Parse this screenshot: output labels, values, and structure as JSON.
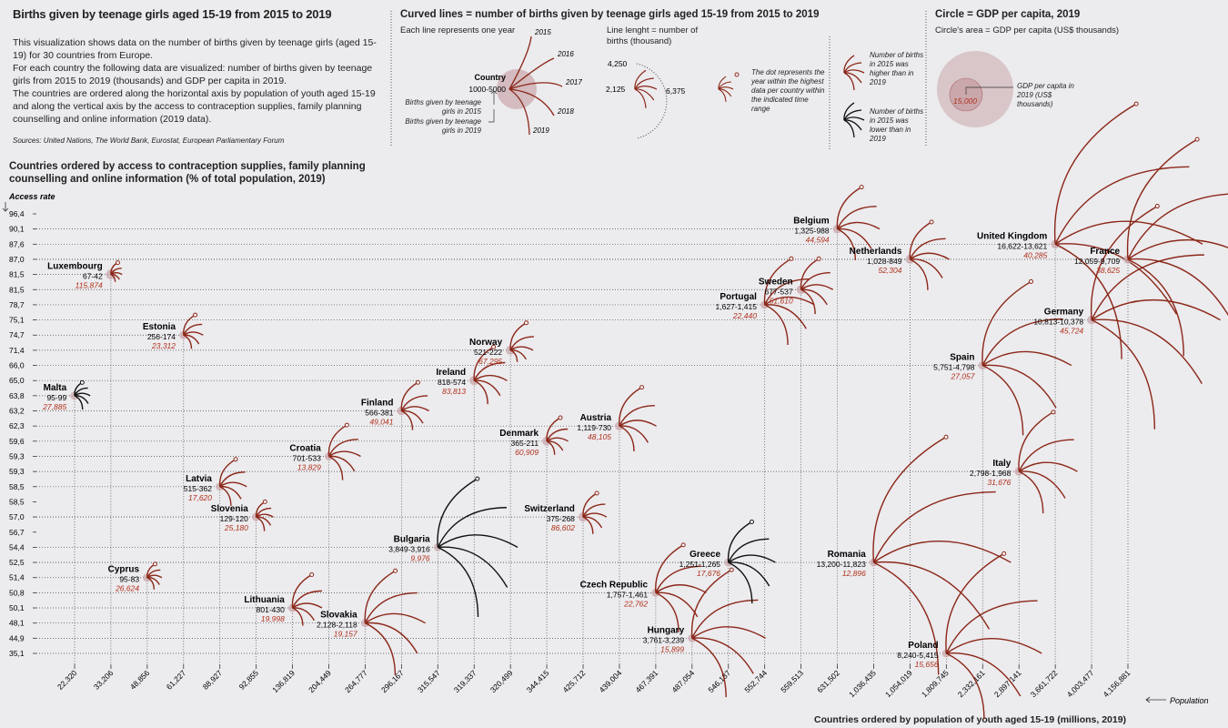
{
  "title": "Births given by teenage girls aged 15-19 from 2015 to 2019",
  "description": [
    "This  visualization shows data on the number of births given by teenage girls (aged 15-19) for 30 countries from Europe.",
    "For each country the following data are visualized: number of births given by teenage girls from 2015 to 2019 (thousands) and GDP per capita in 2019.",
    "The countries are ordered along the horizontal axis by population of youth aged 15-19 and along the vertical axis by the access to contraception supplies, family planning counselling and online information (2019 data)."
  ],
  "sources": "Sources: United Nations, The World Bank, Eurostat, European Parliamentary Forum",
  "y_axis_title": "Countries ordered by access to contraception supplies, family planning counselling and online information (% of total population, 2019)",
  "y_axis_label": "Access rate",
  "x_axis_title": "Countries ordered by population of youth aged 15-19 (millions, 2019)",
  "x_axis_label": "Population",
  "legend": {
    "curves_title": "Curved lines = number of births given by teenage girls aged 15-19 from 2015 to 2019",
    "each_line": "Each line represents one year",
    "years": [
      "2015",
      "2016",
      "2017",
      "2018",
      "2019"
    ],
    "country_label": "Country",
    "country_range": "1000-5000",
    "births_2015": "Births given by teenage girls in 2015",
    "births_2019": "Births given by teenage girls in 2019",
    "line_length": "Line lenght = number of births (thousand)",
    "scale_values": [
      "4,250",
      "2,125",
      "6,375"
    ],
    "dot_note": "The dot represents the year within the highest data per country within the indicated time range",
    "higher_note": "Number of births in 2015 was higher than in 2019",
    "lower_note": "Number of births in 2015 was lower than in 2019",
    "circle_title": "Circle = GDP per capita, 2019",
    "circle_area": "Circle's area = GDP per capita (US$ thousands)",
    "circle_example": "15,000",
    "circle_note": "GDP per capita in 2019 (US$ thousands)"
  },
  "colors": {
    "background": "#ecebee",
    "circle": "#c9a7ab",
    "curve_red": "#8b2718",
    "curve_black": "#111111",
    "gdp_text": "#b0301a"
  },
  "chart_data": {
    "type": "scatter",
    "y_ticks": [
      "96,4",
      "90,1",
      "87,6",
      "87,0",
      "81,5",
      "81,5",
      "78,7",
      "75,1",
      "74,7",
      "71,4",
      "66,0",
      "65,0",
      "63,8",
      "63,2",
      "62,3",
      "59,6",
      "59,3",
      "59,3",
      "58,5",
      "58,5",
      "57,0",
      "56,7",
      "54,4",
      "52,5",
      "51,4",
      "50,8",
      "50,1",
      "48,1",
      "44,9",
      "35,1"
    ],
    "x_ticks": [
      "22,320",
      "33,206",
      "48,856",
      "61,227",
      "88,927",
      "92,855",
      "136,819",
      "204,449",
      "264,777",
      "296,167",
      "315,547",
      "319,337",
      "320,499",
      "344,415",
      "425,712",
      "439,004",
      "467,391",
      "487,054",
      "546,137",
      "552,744",
      "559,513",
      "631,502",
      "1,036,435",
      "1,054,019",
      "1,809,745",
      "2,332,161",
      "2,897,141",
      "3,661,722",
      "4,003,477",
      "4,156,881"
    ],
    "countries": [
      {
        "name": "Luxembourg",
        "births": "67-42",
        "gdp": "115,874",
        "population": "33,206",
        "access": "81,5",
        "higher": true
      },
      {
        "name": "Estonia",
        "births": "256-174",
        "gdp": "23,312",
        "population": "61,227",
        "access": "74,7",
        "higher": true
      },
      {
        "name": "Malta",
        "births": "95-99",
        "gdp": "27,885",
        "population": "22,320",
        "access": "63,8",
        "higher": false
      },
      {
        "name": "Latvia",
        "births": "515-362",
        "gdp": "17,620",
        "population": "88,927",
        "access": "58,5",
        "higher": true
      },
      {
        "name": "Slovenia",
        "births": "129-120",
        "gdp": "25,180",
        "population": "92,855",
        "access": "57,0",
        "higher": true
      },
      {
        "name": "Cyprus",
        "births": "95-83",
        "gdp": "26,624",
        "population": "48,856",
        "access": "51,4",
        "higher": true
      },
      {
        "name": "Lithuania",
        "births": "801-430",
        "gdp": "19,998",
        "population": "136,819",
        "access": "50,1",
        "higher": true
      },
      {
        "name": "Croatia",
        "births": "701-533",
        "gdp": "13,829",
        "population": "204,449",
        "access": "59,3",
        "higher": true
      },
      {
        "name": "Slovakia",
        "births": "2,128-2,118",
        "gdp": "19,157",
        "population": "264,777",
        "access": "48,1",
        "higher": true
      },
      {
        "name": "Finland",
        "births": "566-381",
        "gdp": "49,041",
        "population": "296,167",
        "access": "63,2",
        "higher": true
      },
      {
        "name": "Bulgaria",
        "births": "3,849-3,916",
        "gdp": "9,976",
        "population": "315,547",
        "access": "54,4",
        "higher": false
      },
      {
        "name": "Ireland",
        "births": "818-574",
        "gdp": "83,813",
        "population": "319,337",
        "access": "65,0",
        "higher": true
      },
      {
        "name": "Norway",
        "births": "521-222",
        "gdp": "67,295",
        "population": "320,499",
        "access": "71,4",
        "higher": true
      },
      {
        "name": "Denmark",
        "births": "365-211",
        "gdp": "60,909",
        "population": "344,415",
        "access": "59,6",
        "higher": true
      },
      {
        "name": "Switzerland",
        "births": "375-268",
        "gdp": "86,602",
        "population": "425,712",
        "access": "57,0",
        "higher": true
      },
      {
        "name": "Austria",
        "births": "1,119-730",
        "gdp": "48,105",
        "population": "439,004",
        "access": "62,3",
        "higher": true
      },
      {
        "name": "Czech Republic",
        "births": "1,757-1,461",
        "gdp": "22,762",
        "population": "467,391",
        "access": "50,8",
        "higher": true
      },
      {
        "name": "Hungary",
        "births": "3,761-3,239",
        "gdp": "15,899",
        "population": "487,054",
        "access": "44,9",
        "higher": true
      },
      {
        "name": "Greece",
        "births": "1,251-1,265",
        "gdp": "17,676",
        "population": "546,137",
        "access": "52,5",
        "higher": false
      },
      {
        "name": "Portugal",
        "births": "1,627-1,415",
        "gdp": "22,440",
        "population": "552,744",
        "access": "78,7",
        "higher": true
      },
      {
        "name": "Sweden",
        "births": "677-537",
        "gdp": "51,610",
        "population": "559,513",
        "access": "81,5",
        "higher": true
      },
      {
        "name": "Belgium",
        "births": "1,325-988",
        "gdp": "44,594",
        "population": "631,502",
        "access": "90,1",
        "higher": true
      },
      {
        "name": "Romania",
        "births": "13,200-11,823",
        "gdp": "12,896",
        "population": "1,036,435",
        "access": "52,5",
        "higher": true
      },
      {
        "name": "Netherlands",
        "births": "1,028-849",
        "gdp": "52,304",
        "population": "1,054,019",
        "access": "87,0",
        "higher": true
      },
      {
        "name": "Poland",
        "births": "8,240-5,415",
        "gdp": "15,656",
        "population": "1,809,745",
        "access": "35,1",
        "higher": true
      },
      {
        "name": "Spain",
        "births": "5,751-4,798",
        "gdp": "27,057",
        "population": "2,332,161",
        "access": "66,0",
        "higher": true
      },
      {
        "name": "Italy",
        "births": "2,798-1,968",
        "gdp": "31,676",
        "population": "2,897,141",
        "access": "59,3",
        "higher": true
      },
      {
        "name": "United Kingdom",
        "births": "16,622-13,621",
        "gdp": "40,285",
        "population": "3,661,722",
        "access": "87,6",
        "higher": true
      },
      {
        "name": "Germany",
        "births": "10,813-10,378",
        "gdp": "45,724",
        "population": "4,003,477",
        "access": "75,1",
        "higher": true
      },
      {
        "name": "France",
        "births": "12,059-9,709",
        "gdp": "38,625",
        "population": "4,156,881",
        "access": "87,0",
        "higher": true
      }
    ]
  }
}
